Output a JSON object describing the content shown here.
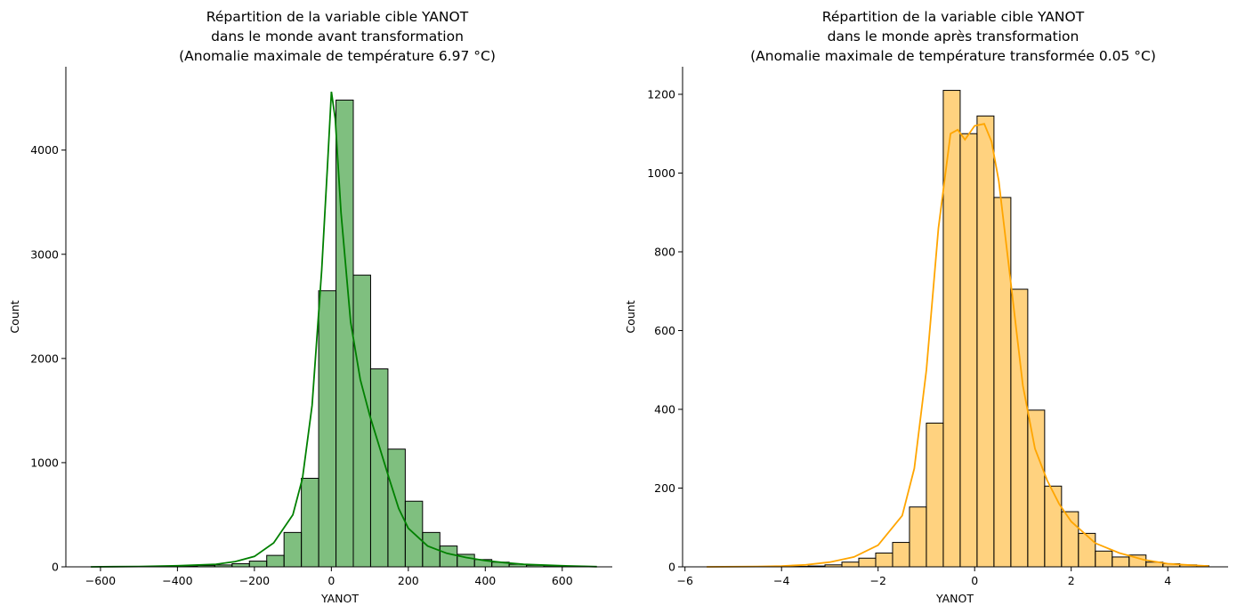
{
  "chart_data": [
    {
      "type": "bar",
      "title_lines": [
        "Répartition de la variable cible YANOT",
        "dans le monde avant transformation",
        "(Anomalie maximale de température 6.97 °C)"
      ],
      "xlabel": "YANOT",
      "ylabel": "Count",
      "xlim": [
        -690,
        730
      ],
      "ylim": [
        0,
        4800
      ],
      "xticks": [
        -600,
        -400,
        -200,
        0,
        200,
        400,
        600
      ],
      "xtick_labels": [
        "−600",
        "−400",
        "−200",
        "0",
        "200",
        "400",
        "600"
      ],
      "yticks": [
        0,
        1000,
        2000,
        3000,
        4000
      ],
      "ytick_labels": [
        "0",
        "1000",
        "2000",
        "3000",
        "4000"
      ],
      "bar_color": "#008000",
      "bar_fill_opacity": 0.5,
      "kde_color": "#008000",
      "grid": false,
      "bins": [
        {
          "x0": -618,
          "x1": -573,
          "count": 0
        },
        {
          "x0": -573,
          "x1": -528,
          "count": 0
        },
        {
          "x0": -528,
          "x1": -483,
          "count": 0
        },
        {
          "x0": -483,
          "x1": -438,
          "count": 3
        },
        {
          "x0": -438,
          "x1": -393,
          "count": 5
        },
        {
          "x0": -393,
          "x1": -348,
          "count": 8
        },
        {
          "x0": -348,
          "x1": -303,
          "count": 12
        },
        {
          "x0": -303,
          "x1": -258,
          "count": 18
        },
        {
          "x0": -258,
          "x1": -213,
          "count": 30
        },
        {
          "x0": -213,
          "x1": -168,
          "count": 55
        },
        {
          "x0": -168,
          "x1": -123,
          "count": 110
        },
        {
          "x0": -123,
          "x1": -78,
          "count": 330
        },
        {
          "x0": -78,
          "x1": -33,
          "count": 850
        },
        {
          "x0": -33,
          "x1": 12,
          "count": 2650
        },
        {
          "x0": 12,
          "x1": 57,
          "count": 4480
        },
        {
          "x0": 57,
          "x1": 102,
          "count": 2800
        },
        {
          "x0": 102,
          "x1": 147,
          "count": 1900
        },
        {
          "x0": 147,
          "x1": 192,
          "count": 1130
        },
        {
          "x0": 192,
          "x1": 237,
          "count": 630
        },
        {
          "x0": 237,
          "x1": 282,
          "count": 330
        },
        {
          "x0": 282,
          "x1": 327,
          "count": 200
        },
        {
          "x0": 327,
          "x1": 372,
          "count": 120
        },
        {
          "x0": 372,
          "x1": 417,
          "count": 70
        },
        {
          "x0": 417,
          "x1": 462,
          "count": 45
        },
        {
          "x0": 462,
          "x1": 507,
          "count": 25
        },
        {
          "x0": 507,
          "x1": 552,
          "count": 15
        },
        {
          "x0": 552,
          "x1": 597,
          "count": 10
        },
        {
          "x0": 597,
          "x1": 642,
          "count": 6
        },
        {
          "x0": 642,
          "x1": 687,
          "count": 3
        }
      ],
      "kde": {
        "x": [
          -625,
          -500,
          -400,
          -300,
          -250,
          -200,
          -150,
          -100,
          -75,
          -50,
          -25,
          -10,
          0,
          10,
          25,
          50,
          75,
          100,
          125,
          150,
          175,
          200,
          250,
          300,
          350,
          400,
          450,
          500,
          600,
          690
        ],
        "y": [
          0,
          3,
          10,
          25,
          50,
          100,
          230,
          500,
          850,
          1550,
          2850,
          3850,
          4560,
          4300,
          3400,
          2350,
          1800,
          1450,
          1150,
          850,
          560,
          370,
          200,
          130,
          90,
          60,
          40,
          25,
          10,
          2
        ]
      }
    },
    {
      "type": "bar",
      "title_lines": [
        "Répartition de la variable cible YANOT",
        "dans le monde après transformation",
        "(Anomalie maximale de température transformée 0.05 °C)"
      ],
      "xlabel": "YANOT",
      "ylabel": "Count",
      "xlim": [
        -6.05,
        5.25
      ],
      "ylim": [
        0,
        1270
      ],
      "xticks": [
        -6,
        -4,
        -2,
        0,
        2,
        4
      ],
      "xtick_labels": [
        "−6",
        "−4",
        "−2",
        "0",
        "2",
        "4"
      ],
      "yticks": [
        0,
        200,
        400,
        600,
        800,
        1000,
        1200
      ],
      "ytick_labels": [
        "0",
        "200",
        "400",
        "600",
        "800",
        "1000",
        "1200"
      ],
      "bar_color": "#ffa500",
      "bar_fill_opacity": 0.5,
      "kde_color": "#ffa500",
      "grid": false,
      "bins": [
        {
          "x0": -5.55,
          "x1": -5.2,
          "count": 0
        },
        {
          "x0": -5.2,
          "x1": -4.85,
          "count": 0
        },
        {
          "x0": -4.85,
          "x1": -4.5,
          "count": 0
        },
        {
          "x0": -4.5,
          "x1": -4.15,
          "count": 0
        },
        {
          "x0": -4.15,
          "x1": -3.8,
          "count": 0
        },
        {
          "x0": -3.8,
          "x1": -3.45,
          "count": 1
        },
        {
          "x0": -3.45,
          "x1": -3.1,
          "count": 2
        },
        {
          "x0": -3.1,
          "x1": -2.75,
          "count": 5
        },
        {
          "x0": -2.75,
          "x1": -2.4,
          "count": 12
        },
        {
          "x0": -2.4,
          "x1": -2.05,
          "count": 22
        },
        {
          "x0": -2.05,
          "x1": -1.7,
          "count": 35
        },
        {
          "x0": -1.7,
          "x1": -1.35,
          "count": 62
        },
        {
          "x0": -1.35,
          "x1": -1.0,
          "count": 152
        },
        {
          "x0": -1.0,
          "x1": -0.65,
          "count": 365
        },
        {
          "x0": -0.65,
          "x1": -0.3,
          "count": 1210
        },
        {
          "x0": -0.3,
          "x1": 0.05,
          "count": 1100
        },
        {
          "x0": 0.05,
          "x1": 0.4,
          "count": 1145
        },
        {
          "x0": 0.4,
          "x1": 0.75,
          "count": 938
        },
        {
          "x0": 0.75,
          "x1": 1.1,
          "count": 705
        },
        {
          "x0": 1.1,
          "x1": 1.45,
          "count": 398
        },
        {
          "x0": 1.45,
          "x1": 1.8,
          "count": 205
        },
        {
          "x0": 1.8,
          "x1": 2.15,
          "count": 140
        },
        {
          "x0": 2.15,
          "x1": 2.5,
          "count": 85
        },
        {
          "x0": 2.5,
          "x1": 2.85,
          "count": 40
        },
        {
          "x0": 2.85,
          "x1": 3.2,
          "count": 25
        },
        {
          "x0": 3.2,
          "x1": 3.55,
          "count": 30
        },
        {
          "x0": 3.55,
          "x1": 3.9,
          "count": 12
        },
        {
          "x0": 3.9,
          "x1": 4.25,
          "count": 8
        },
        {
          "x0": 4.25,
          "x1": 4.6,
          "count": 5
        },
        {
          "x0": 4.6,
          "x1": 4.85,
          "count": 3
        }
      ],
      "kde": {
        "x": [
          -5.55,
          -4.5,
          -4.0,
          -3.5,
          -3.0,
          -2.5,
          -2.0,
          -1.5,
          -1.25,
          -1.0,
          -0.75,
          -0.5,
          -0.35,
          -0.2,
          0.0,
          0.2,
          0.35,
          0.5,
          0.75,
          1.0,
          1.25,
          1.5,
          1.75,
          2.0,
          2.5,
          3.0,
          3.5,
          4.0,
          4.5,
          4.85
        ],
        "y": [
          0,
          1,
          2,
          5,
          12,
          25,
          55,
          130,
          250,
          500,
          860,
          1100,
          1110,
          1085,
          1120,
          1125,
          1080,
          980,
          720,
          460,
          300,
          220,
          160,
          115,
          60,
          35,
          18,
          8,
          4,
          2
        ]
      }
    }
  ]
}
